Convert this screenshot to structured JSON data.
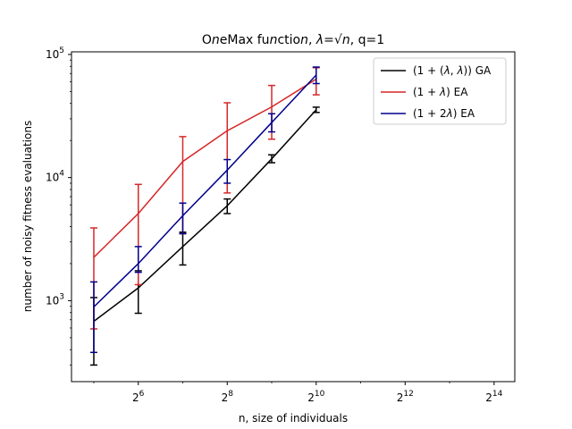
{
  "chart_data": {
    "type": "line",
    "title": "OneMax function, λ=√n, q=1",
    "xlabel": "n, size of individuals",
    "ylabel": "number of noisy fitness evaluations",
    "xscale": "log2",
    "yscale": "log10",
    "xlim": [
      22.6,
      22628
    ],
    "ylim": [
      220,
      105000
    ],
    "x_ticks": [
      {
        "value": 64,
        "base": "2",
        "exp": "6"
      },
      {
        "value": 256,
        "base": "2",
        "exp": "8"
      },
      {
        "value": 1024,
        "base": "2",
        "exp": "10"
      },
      {
        "value": 4096,
        "base": "2",
        "exp": "12"
      },
      {
        "value": 16384,
        "base": "2",
        "exp": "14"
      }
    ],
    "y_ticks": [
      {
        "value": 1000,
        "base": "10",
        "exp": "3"
      },
      {
        "value": 10000,
        "base": "10",
        "exp": "4"
      },
      {
        "value": 100000,
        "base": "10",
        "exp": "5"
      }
    ],
    "grid": false,
    "legend_position": "top-right",
    "series": [
      {
        "name": "(1 + (λ, λ)) GA",
        "color": "#000000",
        "x": [
          32,
          64,
          128,
          256,
          512,
          1024
        ],
        "y": [
          680,
          1270,
          2750,
          5900,
          14200,
          35500
        ],
        "err_low": [
          300,
          790,
          1950,
          5100,
          13200,
          33800
        ],
        "err_high": [
          1060,
          1750,
          3600,
          6700,
          15300,
          37300
        ]
      },
      {
        "name": "(1 + λ) EA",
        "color": "#d62728",
        "x": [
          32,
          64,
          128,
          256,
          512,
          1024
        ],
        "y": [
          2250,
          5100,
          13500,
          24000,
          37500,
          63000
        ],
        "err_low": [
          590,
          1350,
          3500,
          7500,
          20500,
          47000
        ],
        "err_high": [
          3900,
          8800,
          21500,
          40500,
          56000,
          78000
        ]
      },
      {
        "name": "(1 + 2λ) EA",
        "color": "#00008b",
        "x": [
          32,
          64,
          128,
          256,
          512,
          1024
        ],
        "y": [
          890,
          2000,
          4900,
          11500,
          28000,
          68000
        ],
        "err_low": [
          380,
          1700,
          3500,
          9000,
          23500,
          58000
        ],
        "err_high": [
          1420,
          2750,
          6200,
          14000,
          33000,
          79000
        ]
      }
    ]
  }
}
